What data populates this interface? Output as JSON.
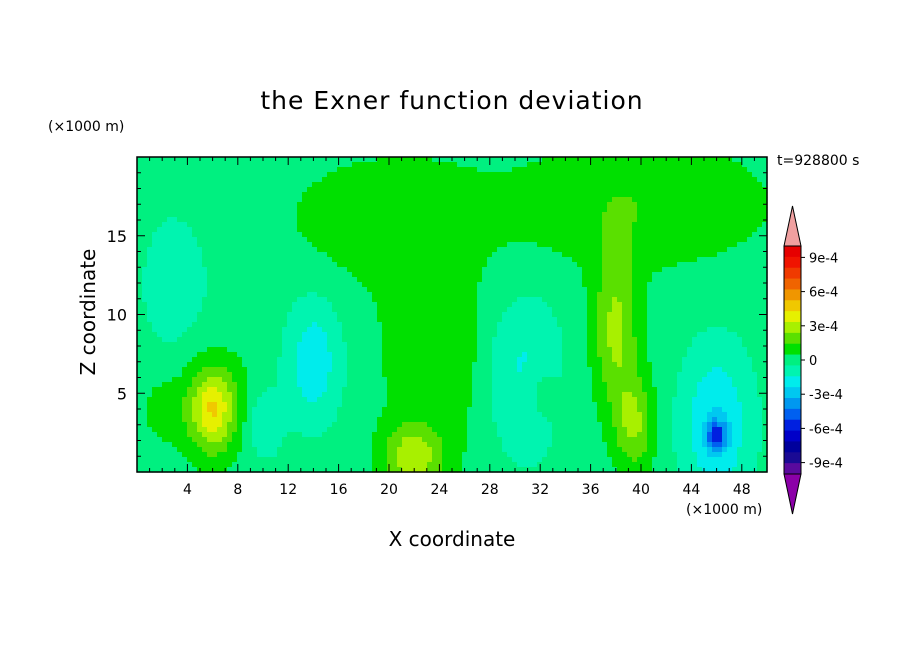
{
  "chart_data": {
    "type": "heatmap",
    "title": "the Exner function deviation",
    "xlabel": "X coordinate",
    "ylabel": "Z coordinate",
    "x_unit": "(×1000 m)",
    "y_unit": "(×1000 m)",
    "time_label": "t=928800 s",
    "xlim": [
      0,
      50
    ],
    "ylim": [
      0,
      20
    ],
    "x_ticks": [
      "4",
      "8",
      "12",
      "16",
      "20",
      "24",
      "28",
      "32",
      "36",
      "40",
      "44",
      "48"
    ],
    "y_ticks": [
      "5",
      "10",
      "15"
    ],
    "colorbar": {
      "tick_labels": [
        "9e-4",
        "6e-4",
        "3e-4",
        "0",
        "-3e-4",
        "-6e-4",
        "-9e-4"
      ],
      "levels_low_to_high": [
        -0.0011,
        -0.001,
        -0.0009,
        -0.0008,
        -0.0007,
        -0.0006,
        -0.0005,
        -0.0004,
        -0.0003,
        -0.0002,
        -0.0001,
        0,
        0.0001,
        0.0002,
        0.0003,
        0.0004,
        0.0005,
        0.0006,
        0.0007,
        0.0008,
        0.0009,
        0.001,
        0.0011
      ],
      "colors_low_to_high": [
        "#8b00a8",
        "#5a0a9e",
        "#1a0a94",
        "#00009c",
        "#0000c8",
        "#0020e0",
        "#0060f0",
        "#0098f0",
        "#00c8f0",
        "#00ecec",
        "#00f4b0",
        "#00f080",
        "#00e000",
        "#5ae000",
        "#a8f000",
        "#e6f000",
        "#f0c800",
        "#f09600",
        "#f06400",
        "#f03a00",
        "#f01400",
        "#e60000",
        "#f0a0a0"
      ],
      "extend": "both"
    },
    "background_level": -5e-05,
    "features": [
      {
        "x": 3,
        "z": 12,
        "sx": 3,
        "sz": 5,
        "value": -0.0001
      },
      {
        "x": 14,
        "z": 7,
        "sx": 2.2,
        "sz": 4,
        "value": -0.00022
      },
      {
        "x": 22,
        "z": 8,
        "sx": 3,
        "sz": 7,
        "value": 0.0001
      },
      {
        "x": 31,
        "z": 6,
        "sx": 2.8,
        "sz": 5,
        "value": -0.00018
      },
      {
        "x": 32,
        "z": 5,
        "sx": 1.4,
        "sz": 2,
        "value": 0.00012
      },
      {
        "x": 6,
        "z": 4,
        "sx": 2.4,
        "sz": 3,
        "value": 0.00035
      },
      {
        "x": 6,
        "z": 4,
        "sx": 1.1,
        "sz": 2,
        "value": 0.00012
      },
      {
        "x": 10,
        "z": 3,
        "sx": 1.5,
        "sz": 2.2,
        "value": -0.00015
      },
      {
        "x": 22,
        "z": 1,
        "sx": 2.5,
        "sz": 2,
        "value": 0.0003
      },
      {
        "x": 38,
        "z": 9,
        "sx": 1.8,
        "sz": 5,
        "value": 0.00028
      },
      {
        "x": 39.5,
        "z": 3,
        "sx": 1.6,
        "sz": 3,
        "value": 0.00025
      },
      {
        "x": 46,
        "z": 3,
        "sx": 2.8,
        "sz": 5,
        "value": -0.00025
      },
      {
        "x": 46,
        "z": 2.3,
        "sx": 0.8,
        "sz": 0.9,
        "value": -0.0004
      },
      {
        "x": 20,
        "z": 16,
        "sx": 8,
        "sz": 4,
        "value": 0.00012
      },
      {
        "x": 40,
        "z": 17,
        "sx": 10,
        "sz": 4,
        "value": 0.00014
      },
      {
        "x": 26,
        "z": 8,
        "sx": 1.5,
        "sz": 6,
        "value": 8e-05
      },
      {
        "x": 2,
        "z": 4,
        "sx": 1.5,
        "sz": 2,
        "value": 0.0001
      }
    ]
  }
}
